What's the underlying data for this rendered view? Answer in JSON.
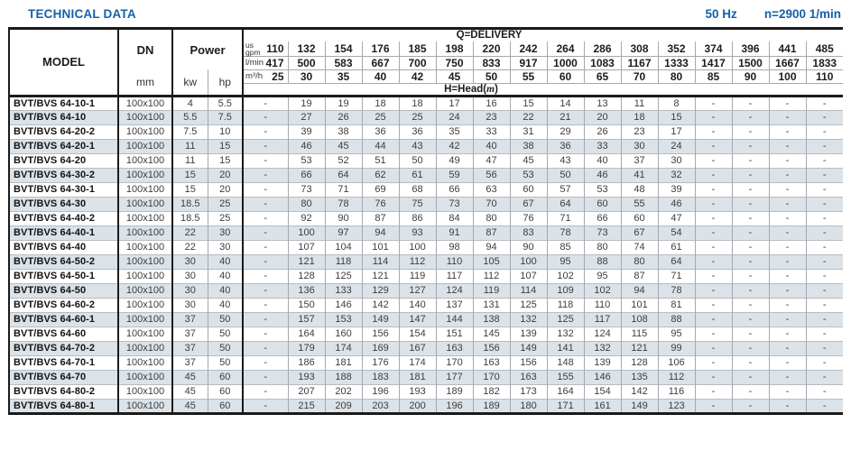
{
  "colors": {
    "accent": "#1560a8",
    "alt_row": "#dbe3e9"
  },
  "page": {
    "title": "TECHNICAL DATA",
    "frequency": "50 Hz",
    "speed": "n=2900 1/min"
  },
  "table": {
    "columns": {
      "model": "MODEL",
      "dn": "DN",
      "dn_unit": "mm",
      "power": "Power",
      "power_unit_kw": "kw",
      "power_unit_hp": "hp"
    },
    "delivery": {
      "title": "Q=DELIVERY",
      "head_prefix": "H=Head(",
      "head_unit": "m",
      "head_suffix": ")",
      "unit_rows": [
        {
          "label_lines": [
            "us",
            "gpm"
          ],
          "values": [
            "110",
            "132",
            "154",
            "176",
            "185",
            "198",
            "220",
            "242",
            "264",
            "286",
            "308",
            "352",
            "374",
            "396",
            "441",
            "485"
          ]
        },
        {
          "label": "l/min",
          "values": [
            "417",
            "500",
            "583",
            "667",
            "700",
            "750",
            "833",
            "917",
            "1000",
            "1083",
            "1167",
            "1333",
            "1417",
            "1500",
            "1667",
            "1833"
          ]
        },
        {
          "label": "m³/h",
          "values": [
            "25",
            "30",
            "35",
            "40",
            "42",
            "45",
            "50",
            "55",
            "60",
            "65",
            "70",
            "80",
            "85",
            "90",
            "100",
            "110"
          ]
        }
      ]
    },
    "rows": [
      {
        "model": "BVT/BVS 64-10-1",
        "dn": "100x100",
        "kw": "4",
        "hp": "5.5",
        "head": [
          "-",
          "19",
          "19",
          "18",
          "18",
          "17",
          "16",
          "15",
          "14",
          "13",
          "11",
          "8",
          "-",
          "-",
          "-",
          "-"
        ]
      },
      {
        "model": "BVT/BVS 64-10",
        "dn": "100x100",
        "kw": "5.5",
        "hp": "7.5",
        "head": [
          "-",
          "27",
          "26",
          "25",
          "25",
          "24",
          "23",
          "22",
          "21",
          "20",
          "18",
          "15",
          "-",
          "-",
          "-",
          "-"
        ]
      },
      {
        "model": "BVT/BVS 64-20-2",
        "dn": "100x100",
        "kw": "7.5",
        "hp": "10",
        "head": [
          "-",
          "39",
          "38",
          "36",
          "36",
          "35",
          "33",
          "31",
          "29",
          "26",
          "23",
          "17",
          "-",
          "-",
          "-",
          "-"
        ]
      },
      {
        "model": "BVT/BVS 64-20-1",
        "dn": "100x100",
        "kw": "11",
        "hp": "15",
        "head": [
          "-",
          "46",
          "45",
          "44",
          "43",
          "42",
          "40",
          "38",
          "36",
          "33",
          "30",
          "24",
          "-",
          "-",
          "-",
          "-"
        ]
      },
      {
        "model": "BVT/BVS 64-20",
        "dn": "100x100",
        "kw": "11",
        "hp": "15",
        "head": [
          "-",
          "53",
          "52",
          "51",
          "50",
          "49",
          "47",
          "45",
          "43",
          "40",
          "37",
          "30",
          "-",
          "-",
          "-",
          "-"
        ]
      },
      {
        "model": "BVT/BVS 64-30-2",
        "dn": "100x100",
        "kw": "15",
        "hp": "20",
        "head": [
          "-",
          "66",
          "64",
          "62",
          "61",
          "59",
          "56",
          "53",
          "50",
          "46",
          "41",
          "32",
          "-",
          "-",
          "-",
          "-"
        ]
      },
      {
        "model": "BVT/BVS 64-30-1",
        "dn": "100x100",
        "kw": "15",
        "hp": "20",
        "head": [
          "-",
          "73",
          "71",
          "69",
          "68",
          "66",
          "63",
          "60",
          "57",
          "53",
          "48",
          "39",
          "-",
          "-",
          "-",
          "-"
        ]
      },
      {
        "model": "BVT/BVS 64-30",
        "dn": "100x100",
        "kw": "18.5",
        "hp": "25",
        "head": [
          "-",
          "80",
          "78",
          "76",
          "75",
          "73",
          "70",
          "67",
          "64",
          "60",
          "55",
          "46",
          "-",
          "-",
          "-",
          "-"
        ]
      },
      {
        "model": "BVT/BVS 64-40-2",
        "dn": "100x100",
        "kw": "18.5",
        "hp": "25",
        "head": [
          "-",
          "92",
          "90",
          "87",
          "86",
          "84",
          "80",
          "76",
          "71",
          "66",
          "60",
          "47",
          "-",
          "-",
          "-",
          "-"
        ]
      },
      {
        "model": "BVT/BVS 64-40-1",
        "dn": "100x100",
        "kw": "22",
        "hp": "30",
        "head": [
          "-",
          "100",
          "97",
          "94",
          "93",
          "91",
          "87",
          "83",
          "78",
          "73",
          "67",
          "54",
          "-",
          "-",
          "-",
          "-"
        ]
      },
      {
        "model": "BVT/BVS 64-40",
        "dn": "100x100",
        "kw": "22",
        "hp": "30",
        "head": [
          "-",
          "107",
          "104",
          "101",
          "100",
          "98",
          "94",
          "90",
          "85",
          "80",
          "74",
          "61",
          "-",
          "-",
          "-",
          "-"
        ]
      },
      {
        "model": "BVT/BVS 64-50-2",
        "dn": "100x100",
        "kw": "30",
        "hp": "40",
        "head": [
          "-",
          "121",
          "118",
          "114",
          "112",
          "110",
          "105",
          "100",
          "95",
          "88",
          "80",
          "64",
          "-",
          "-",
          "-",
          "-"
        ]
      },
      {
        "model": "BVT/BVS 64-50-1",
        "dn": "100x100",
        "kw": "30",
        "hp": "40",
        "head": [
          "-",
          "128",
          "125",
          "121",
          "119",
          "117",
          "112",
          "107",
          "102",
          "95",
          "87",
          "71",
          "-",
          "-",
          "-",
          "-"
        ]
      },
      {
        "model": "BVT/BVS 64-50",
        "dn": "100x100",
        "kw": "30",
        "hp": "40",
        "head": [
          "-",
          "136",
          "133",
          "129",
          "127",
          "124",
          "119",
          "114",
          "109",
          "102",
          "94",
          "78",
          "-",
          "-",
          "-",
          "-"
        ]
      },
      {
        "model": "BVT/BVS 64-60-2",
        "dn": "100x100",
        "kw": "30",
        "hp": "40",
        "head": [
          "-",
          "150",
          "146",
          "142",
          "140",
          "137",
          "131",
          "125",
          "118",
          "110",
          "101",
          "81",
          "-",
          "-",
          "-",
          "-"
        ]
      },
      {
        "model": "BVT/BVS 64-60-1",
        "dn": "100x100",
        "kw": "37",
        "hp": "50",
        "head": [
          "-",
          "157",
          "153",
          "149",
          "147",
          "144",
          "138",
          "132",
          "125",
          "117",
          "108",
          "88",
          "-",
          "-",
          "-",
          "-"
        ]
      },
      {
        "model": "BVT/BVS 64-60",
        "dn": "100x100",
        "kw": "37",
        "hp": "50",
        "head": [
          "-",
          "164",
          "160",
          "156",
          "154",
          "151",
          "145",
          "139",
          "132",
          "124",
          "115",
          "95",
          "-",
          "-",
          "-",
          "-"
        ]
      },
      {
        "model": "BVT/BVS 64-70-2",
        "dn": "100x100",
        "kw": "37",
        "hp": "50",
        "head": [
          "-",
          "179",
          "174",
          "169",
          "167",
          "163",
          "156",
          "149",
          "141",
          "132",
          "121",
          "99",
          "-",
          "-",
          "-",
          "-"
        ]
      },
      {
        "model": "BVT/BVS 64-70-1",
        "dn": "100x100",
        "kw": "37",
        "hp": "50",
        "head": [
          "-",
          "186",
          "181",
          "176",
          "174",
          "170",
          "163",
          "156",
          "148",
          "139",
          "128",
          "106",
          "-",
          "-",
          "-",
          "-"
        ]
      },
      {
        "model": "BVT/BVS 64-70",
        "dn": "100x100",
        "kw": "45",
        "hp": "60",
        "head": [
          "-",
          "193",
          "188",
          "183",
          "181",
          "177",
          "170",
          "163",
          "155",
          "146",
          "135",
          "112",
          "-",
          "-",
          "-",
          "-"
        ]
      },
      {
        "model": "BVT/BVS 64-80-2",
        "dn": "100x100",
        "kw": "45",
        "hp": "60",
        "head": [
          "-",
          "207",
          "202",
          "196",
          "193",
          "189",
          "182",
          "173",
          "164",
          "154",
          "142",
          "116",
          "-",
          "-",
          "-",
          "-"
        ]
      },
      {
        "model": "BVT/BVS 64-80-1",
        "dn": "100x100",
        "kw": "45",
        "hp": "60",
        "head": [
          "-",
          "215",
          "209",
          "203",
          "200",
          "196",
          "189",
          "180",
          "171",
          "161",
          "149",
          "123",
          "-",
          "-",
          "-",
          "-"
        ]
      }
    ]
  }
}
